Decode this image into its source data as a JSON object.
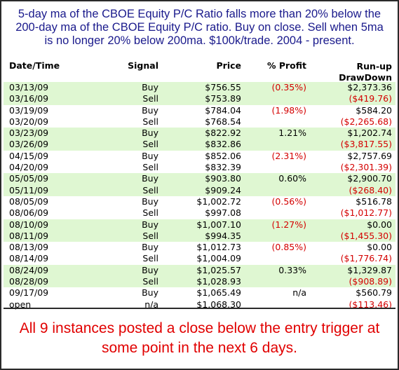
{
  "header": {
    "line1": "5-day ma of the CBOE Equity P/C Ratio falls more than 20% below the",
    "line2": "200-day ma of the CBOE Equity P/C ratio.  Buy on close. Sell when 5ma",
    "line3": "is no longer 20% below 200ma. $100k/trade. 2004 - present."
  },
  "columns": {
    "date": "Date/Time",
    "signal": "Signal",
    "price": "Price",
    "pct_profit": "% Profit",
    "runup": "Run-up",
    "drawdown": "DrawDown"
  },
  "rows": [
    {
      "date": "03/13/09",
      "signal": "Buy",
      "price": "$756.55",
      "pct_profit": "(0.35%)",
      "runup": "$2,373.36",
      "green": true
    },
    {
      "date": "03/16/09",
      "signal": "Sell",
      "price": "$753.89",
      "pct_profit": "",
      "runup": "($419.76)",
      "green": true
    },
    {
      "date": "03/19/09",
      "signal": "Buy",
      "price": "$784.04",
      "pct_profit": "(1.98%)",
      "runup": "$584.20",
      "green": false
    },
    {
      "date": "03/20/09",
      "signal": "Sell",
      "price": "$768.54",
      "pct_profit": "",
      "runup": "($2,265.68)",
      "green": false
    },
    {
      "date": "03/23/09",
      "signal": "Buy",
      "price": "$822.92",
      "pct_profit": "1.21%",
      "runup": "$1,202.74",
      "green": true
    },
    {
      "date": "03/26/09",
      "signal": "Sell",
      "price": "$832.86",
      "pct_profit": "",
      "runup": "($3,817.55)",
      "green": true
    },
    {
      "date": "04/15/09",
      "signal": "Buy",
      "price": "$852.06",
      "pct_profit": "(2.31%)",
      "runup": "$2,757.69",
      "green": false
    },
    {
      "date": "04/20/09",
      "signal": "Sell",
      "price": "$832.39",
      "pct_profit": "",
      "runup": "($2,301.39)",
      "green": false
    },
    {
      "date": "05/05/09",
      "signal": "Buy",
      "price": "$903.80",
      "pct_profit": "0.60%",
      "runup": "$2,900.70",
      "green": true
    },
    {
      "date": "05/11/09",
      "signal": "Sell",
      "price": "$909.24",
      "pct_profit": "",
      "runup": "($268.40)",
      "green": true
    },
    {
      "date": "08/05/09",
      "signal": "Buy",
      "price": "$1,002.72",
      "pct_profit": "(0.56%)",
      "runup": "$516.78",
      "green": false
    },
    {
      "date": "08/06/09",
      "signal": "Sell",
      "price": "$997.08",
      "pct_profit": "",
      "runup": "($1,012.77)",
      "green": false
    },
    {
      "date": "08/10/09",
      "signal": "Buy",
      "price": "$1,007.10",
      "pct_profit": "(1.27%)",
      "runup": "$0.00",
      "green": true
    },
    {
      "date": "08/11/09",
      "signal": "Sell",
      "price": "$994.35",
      "pct_profit": "",
      "runup": "($1,455.30)",
      "green": true
    },
    {
      "date": "08/13/09",
      "signal": "Buy",
      "price": "$1,012.73",
      "pct_profit": "(0.85%)",
      "runup": "$0.00",
      "green": false
    },
    {
      "date": "08/14/09",
      "signal": "Sell",
      "price": "$1,004.09",
      "pct_profit": "",
      "runup": "($1,776.74)",
      "green": false
    },
    {
      "date": "08/24/09",
      "signal": "Buy",
      "price": "$1,025.57",
      "pct_profit": "0.33%",
      "runup": "$1,329.87",
      "green": true
    },
    {
      "date": "08/28/09",
      "signal": "Sell",
      "price": "$1,028.93",
      "pct_profit": "",
      "runup": "($908.89)",
      "green": true
    },
    {
      "date": "09/17/09",
      "signal": "Buy",
      "price": "$1,065.49",
      "pct_profit": "n/a",
      "runup": "$560.79",
      "green": false
    },
    {
      "date": "open",
      "signal": "n/a",
      "price": "$1,068.30",
      "pct_profit": "",
      "runup": "($113.46)",
      "green": false
    }
  ],
  "footer": {
    "line1": "All 9 instances posted a close below the entry trigger at",
    "line2": "some point in the next 6 days."
  },
  "colors": {
    "header_text": "#1a1a8c",
    "negative": "#d40000",
    "row_highlight": "#dff7d2",
    "footer_text": "#e10000"
  }
}
